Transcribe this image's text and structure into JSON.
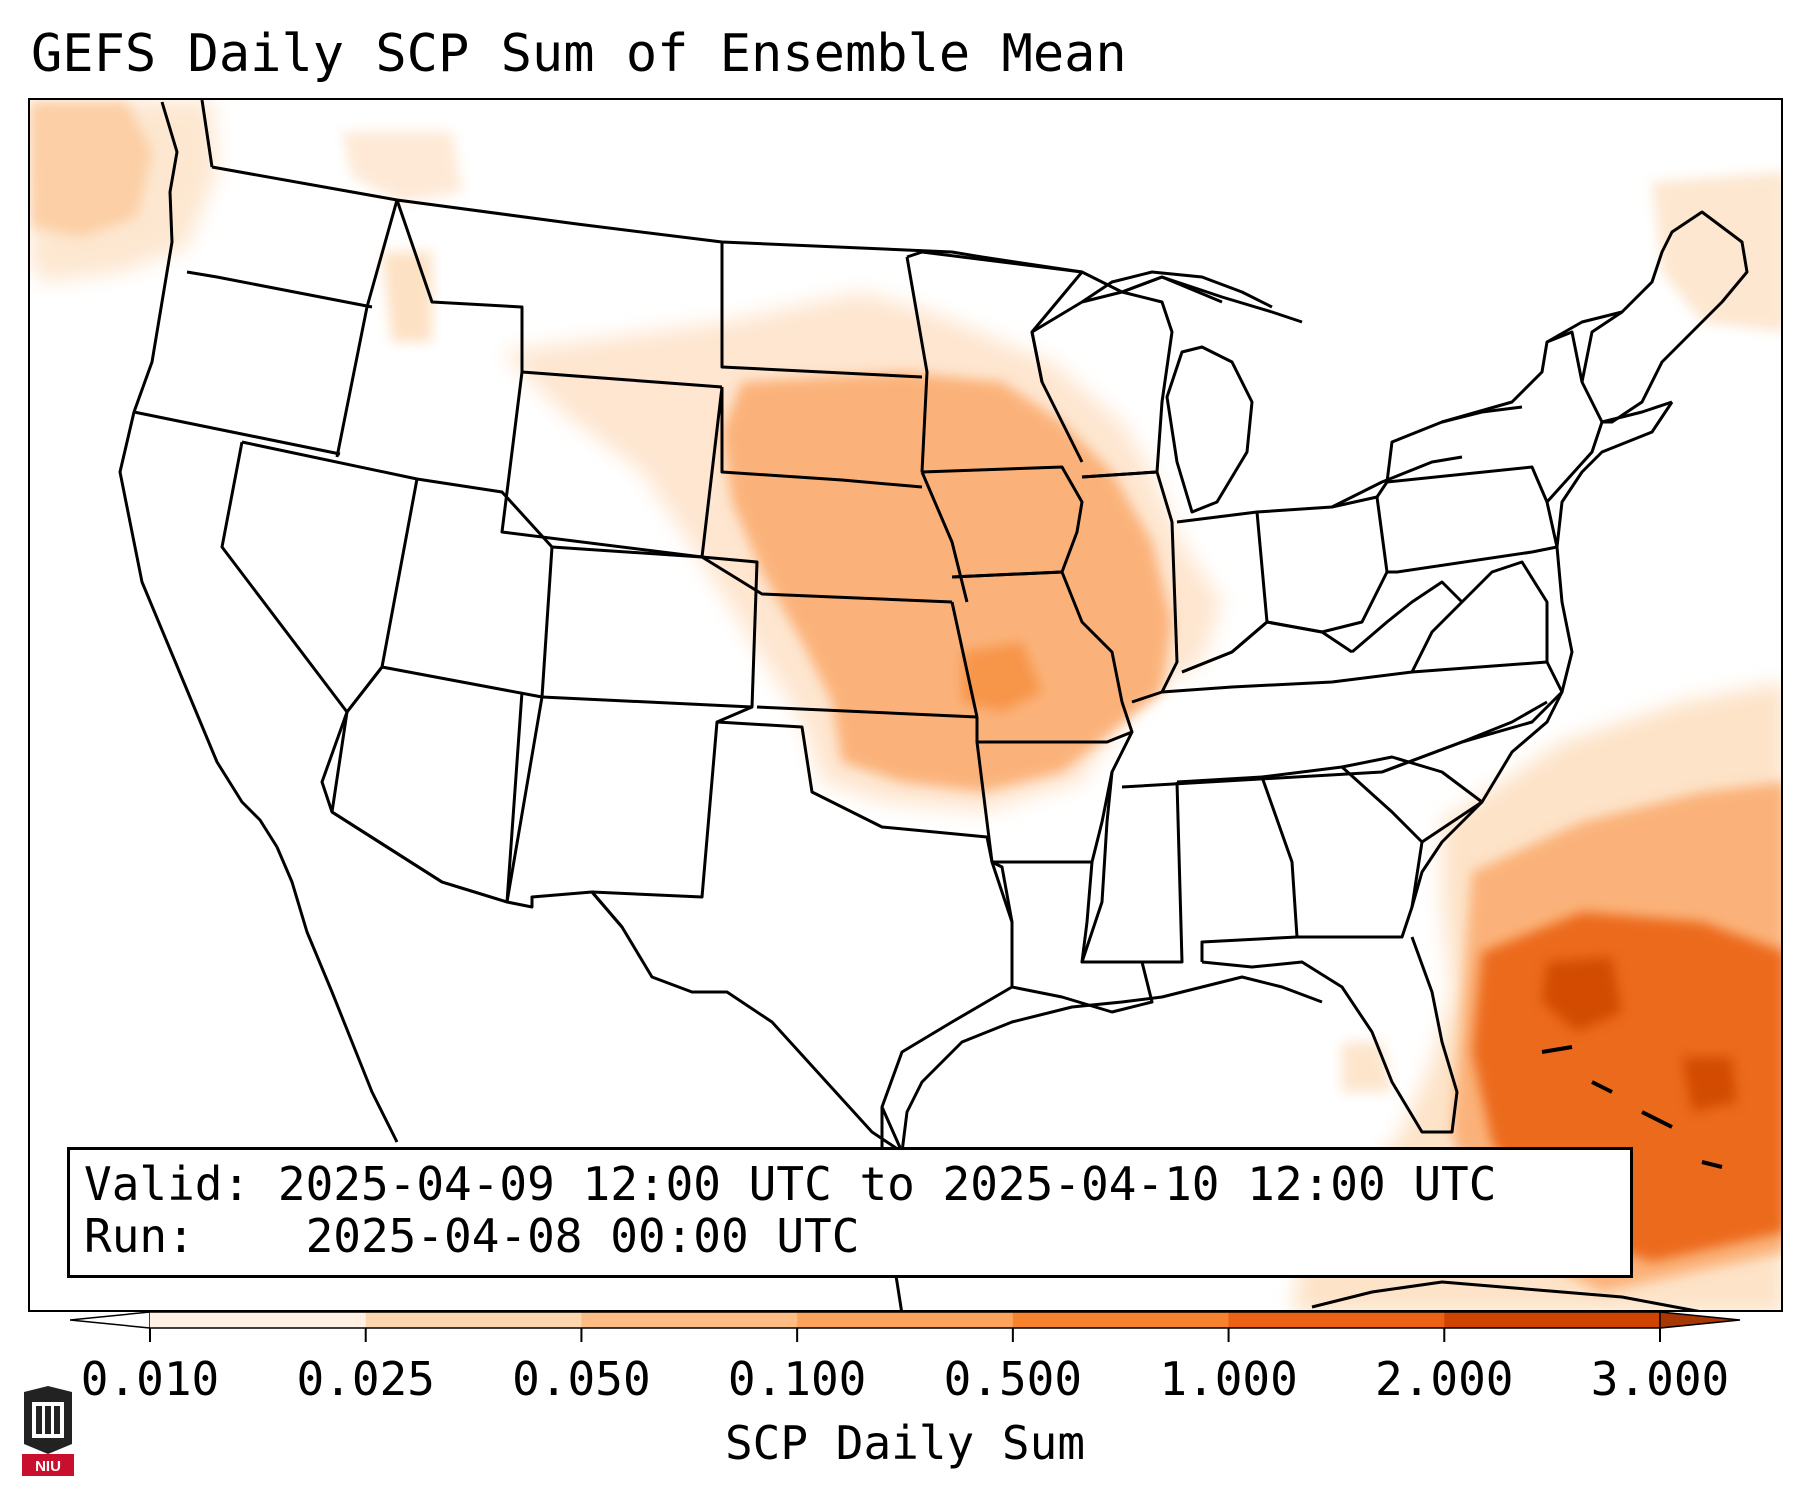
{
  "title": "GEFS Daily SCP Sum of Ensemble Mean",
  "info_box": {
    "valid_label": "Valid:",
    "valid_value": "2025-04-09 12:00 UTC to 2025-04-10 12:00 UTC",
    "run_label": "Run:",
    "run_value": "2025-04-08 00:00 UTC"
  },
  "colorbar": {
    "label": "SCP Daily Sum",
    "ticks": [
      "0.010",
      "0.025",
      "0.050",
      "0.100",
      "0.500",
      "1.000",
      "2.000",
      "3.000"
    ],
    "colors": [
      "#fff1e4",
      "#fdd7b0",
      "#fdbd84",
      "#fda35b",
      "#f8832f",
      "#eb6214",
      "#d04401"
    ],
    "under_color": "#ffffff",
    "over_color": "#a83703"
  },
  "logo": {
    "text": "NIU",
    "color": "#c8102e"
  },
  "map": {
    "region": "Contiguous United States",
    "colors": {
      "state_border": "#000000",
      "fill_low": "#fde7d0",
      "fill_mid": "#fbb27a",
      "fill_high": "#ec6a1d",
      "fill_peak": "#d24b06"
    }
  }
}
